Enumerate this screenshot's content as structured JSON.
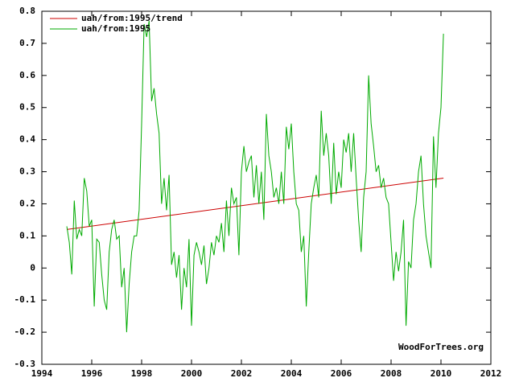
{
  "chart_data": {
    "type": "line",
    "xlim": [
      1994,
      2012
    ],
    "xticks": [
      1994,
      1996,
      1998,
      2000,
      2002,
      2004,
      2006,
      2008,
      2010,
      2012
    ],
    "ylim": [
      -0.3,
      0.8
    ],
    "yticks": [
      -0.3,
      -0.2,
      -0.1,
      0,
      0.1,
      0.2,
      0.3,
      0.4,
      0.5,
      0.6,
      0.7,
      0.8
    ],
    "grid": false,
    "legend": "top-left",
    "annotation": "WoodForTrees.org",
    "series": [
      {
        "name": "uah/from:1995/trend",
        "color": "#cc0000",
        "x": [
          1995.0,
          2010.1
        ],
        "values": [
          0.12,
          0.28
        ]
      },
      {
        "name": "uah/from:1995",
        "color": "#00aa00",
        "x": [
          1995.0,
          1995.1,
          1995.2,
          1995.3,
          1995.4,
          1995.5,
          1995.6,
          1995.7,
          1995.8,
          1995.9,
          1996.0,
          1996.1,
          1996.2,
          1996.3,
          1996.4,
          1996.5,
          1996.6,
          1996.7,
          1996.8,
          1996.9,
          1997.0,
          1997.1,
          1997.2,
          1997.3,
          1997.4,
          1997.5,
          1997.6,
          1997.7,
          1997.8,
          1997.9,
          1998.0,
          1998.1,
          1998.2,
          1998.3,
          1998.4,
          1998.5,
          1998.6,
          1998.7,
          1998.8,
          1998.9,
          1999.0,
          1999.1,
          1999.2,
          1999.3,
          1999.4,
          1999.5,
          1999.6,
          1999.7,
          1999.8,
          1999.9,
          2000.0,
          2000.1,
          2000.2,
          2000.3,
          2000.4,
          2000.5,
          2000.6,
          2000.7,
          2000.8,
          2000.9,
          2001.0,
          2001.1,
          2001.2,
          2001.3,
          2001.4,
          2001.5,
          2001.6,
          2001.7,
          2001.8,
          2001.9,
          2002.0,
          2002.1,
          2002.2,
          2002.3,
          2002.4,
          2002.5,
          2002.6,
          2002.7,
          2002.8,
          2002.9,
          2003.0,
          2003.1,
          2003.2,
          2003.3,
          2003.4,
          2003.5,
          2003.6,
          2003.7,
          2003.8,
          2003.9,
          2004.0,
          2004.1,
          2004.2,
          2004.3,
          2004.4,
          2004.5,
          2004.6,
          2004.7,
          2004.8,
          2004.9,
          2005.0,
          2005.1,
          2005.2,
          2005.3,
          2005.4,
          2005.5,
          2005.6,
          2005.7,
          2005.8,
          2005.9,
          2006.0,
          2006.1,
          2006.2,
          2006.3,
          2006.4,
          2006.5,
          2006.6,
          2006.7,
          2006.8,
          2006.9,
          2007.0,
          2007.1,
          2007.2,
          2007.3,
          2007.4,
          2007.5,
          2007.6,
          2007.7,
          2007.8,
          2007.9,
          2008.0,
          2008.1,
          2008.2,
          2008.3,
          2008.4,
          2008.5,
          2008.6,
          2008.7,
          2008.8,
          2008.9,
          2009.0,
          2009.1,
          2009.2,
          2009.3,
          2009.4,
          2009.5,
          2009.6,
          2009.7,
          2009.8,
          2009.9,
          2010.0,
          2010.1
        ],
        "values": [
          0.13,
          0.08,
          -0.02,
          0.21,
          0.09,
          0.12,
          0.1,
          0.28,
          0.24,
          0.13,
          0.15,
          -0.12,
          0.09,
          0.08,
          -0.02,
          -0.1,
          -0.13,
          0.05,
          0.12,
          0.15,
          0.09,
          0.1,
          -0.06,
          0.0,
          -0.2,
          -0.05,
          0.05,
          0.1,
          0.1,
          0.18,
          0.45,
          0.76,
          0.72,
          0.77,
          0.52,
          0.56,
          0.48,
          0.42,
          0.2,
          0.28,
          0.18,
          0.29,
          0.01,
          0.05,
          -0.03,
          0.04,
          -0.13,
          0.0,
          -0.06,
          0.09,
          -0.18,
          0.04,
          0.08,
          0.05,
          0.01,
          0.07,
          -0.05,
          0.0,
          0.08,
          0.04,
          0.1,
          0.08,
          0.14,
          0.05,
          0.21,
          0.1,
          0.25,
          0.2,
          0.22,
          0.04,
          0.3,
          0.38,
          0.3,
          0.33,
          0.35,
          0.22,
          0.32,
          0.2,
          0.3,
          0.15,
          0.48,
          0.35,
          0.3,
          0.22,
          0.25,
          0.2,
          0.3,
          0.2,
          0.44,
          0.37,
          0.45,
          0.3,
          0.2,
          0.18,
          0.05,
          0.1,
          -0.12,
          0.05,
          0.2,
          0.25,
          0.29,
          0.22,
          0.49,
          0.35,
          0.42,
          0.35,
          0.2,
          0.39,
          0.23,
          0.3,
          0.25,
          0.4,
          0.36,
          0.42,
          0.3,
          0.42,
          0.28,
          0.15,
          0.05,
          0.22,
          0.3,
          0.6,
          0.45,
          0.38,
          0.3,
          0.32,
          0.25,
          0.28,
          0.22,
          0.2,
          0.08,
          -0.04,
          0.05,
          -0.01,
          0.05,
          0.15,
          -0.18,
          0.02,
          0.0,
          0.15,
          0.2,
          0.3,
          0.35,
          0.2,
          0.1,
          0.05,
          0.0,
          0.41,
          0.25,
          0.42,
          0.5,
          0.73
        ]
      }
    ]
  }
}
